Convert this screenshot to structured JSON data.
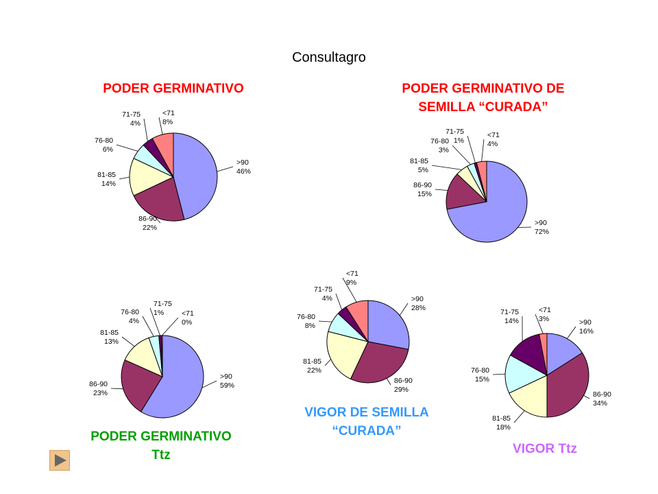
{
  "header": "Consultagro",
  "titles": {
    "pg": "PODER GERMINATIVO",
    "pgc_1": "PODER GERMINATIVO DE",
    "pgc_2": "SEMILLA “CURADA”",
    "pgt_1": "PODER GERMINATIVO",
    "pgt_2": "Ttz",
    "vsc_1": "VIGOR DE SEMILLA",
    "vsc_2": "“CURADA”",
    "vt": "VIGOR Ttz"
  },
  "colors": {
    ">90": "#9999ff",
    "86-90": "#993366",
    "81-85": "#ffffcc",
    "76-80": "#ccffff",
    "71-75": "#660066",
    "<71": "#ff8080"
  },
  "nav": {
    "next_icon": "play-triangle-icon"
  },
  "chart_data": [
    {
      "type": "pie",
      "id": "pg",
      "slices": [
        {
          "label": ">90",
          "value": 46,
          "text": "46%"
        },
        {
          "label": "86-90",
          "value": 22,
          "text": "22%"
        },
        {
          "label": "81-85",
          "value": 14,
          "text": "14%"
        },
        {
          "label": "76-80",
          "value": 6,
          "text": "6%"
        },
        {
          "label": "71-75",
          "value": 4,
          "text": "4%"
        },
        {
          "label": "<71",
          "value": 8,
          "text": "8%"
        }
      ]
    },
    {
      "type": "pie",
      "id": "pgc",
      "slices": [
        {
          "label": ">90",
          "value": 72,
          "text": "72%"
        },
        {
          "label": "86-90",
          "value": 15,
          "text": "15%"
        },
        {
          "label": "81-85",
          "value": 5,
          "text": "5%"
        },
        {
          "label": "76-80",
          "value": 3,
          "text": "3%"
        },
        {
          "label": "71-75",
          "value": 1,
          "text": "1%"
        },
        {
          "label": "<71",
          "value": 4,
          "text": "4%"
        }
      ]
    },
    {
      "type": "pie",
      "id": "pgt",
      "slices": [
        {
          "label": ">90",
          "value": 59,
          "text": "59%"
        },
        {
          "label": "86-90",
          "value": 23,
          "text": "23%"
        },
        {
          "label": "81-85",
          "value": 13,
          "text": "13%"
        },
        {
          "label": "76-80",
          "value": 4,
          "text": "4%"
        },
        {
          "label": "71-75",
          "value": 1,
          "text": "1%"
        },
        {
          "label": "<71",
          "value": 0.4,
          "text": "0%"
        }
      ]
    },
    {
      "type": "pie",
      "id": "vsc",
      "slices": [
        {
          "label": ">90",
          "value": 28,
          "text": "28%"
        },
        {
          "label": "86-90",
          "value": 29,
          "text": "29%"
        },
        {
          "label": "81-85",
          "value": 22,
          "text": "22%"
        },
        {
          "label": "76-80",
          "value": 8,
          "text": "8%"
        },
        {
          "label": "71-75",
          "value": 4,
          "text": "4%"
        },
        {
          "label": "<71",
          "value": 9,
          "text": "9%"
        }
      ]
    },
    {
      "type": "pie",
      "id": "vt",
      "slices": [
        {
          "label": ">90",
          "value": 16,
          "text": "16%"
        },
        {
          "label": "86-90",
          "value": 34,
          "text": "34%"
        },
        {
          "label": "81-85",
          "value": 18,
          "text": "18%"
        },
        {
          "label": "76-80",
          "value": 15,
          "text": "15%"
        },
        {
          "label": "71-75",
          "value": 14,
          "text": "14%"
        },
        {
          "label": "<71",
          "value": 3,
          "text": "3%"
        }
      ]
    }
  ]
}
